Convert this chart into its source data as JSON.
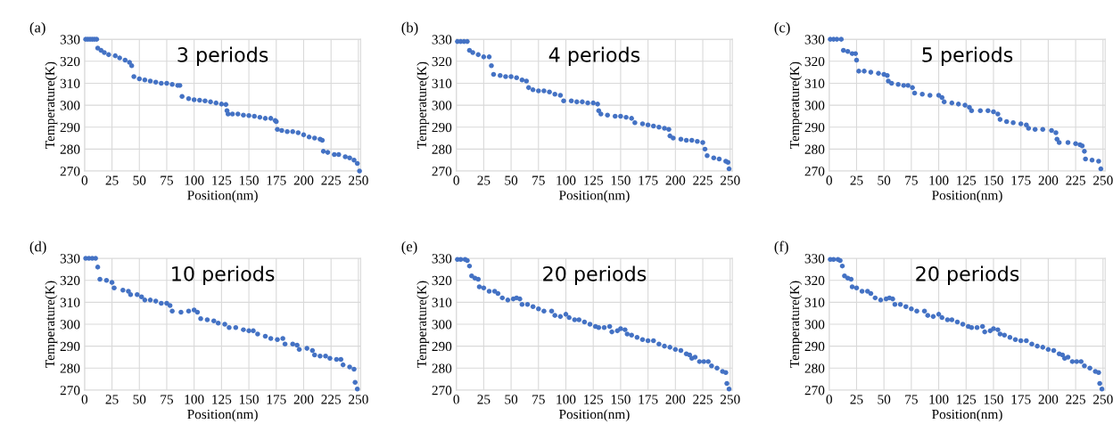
{
  "chart_data": [
    {
      "type": "scatter",
      "title": "(a)",
      "annotations": [
        "3 periods"
      ],
      "xlabel": "Position(nm)",
      "ylabel": "Temperature(K)",
      "xlim": [
        0,
        252
      ],
      "xticks": [
        0,
        25,
        50,
        75,
        100,
        125,
        150,
        175,
        200,
        225,
        250
      ],
      "ylim": [
        270,
        330
      ],
      "yticks": [
        270,
        280,
        290,
        300,
        310,
        320,
        330
      ],
      "grid": true,
      "marker": "circle",
      "series": [
        {
          "color": "#4472c4",
          "x": [
            1,
            3,
            5,
            7,
            9,
            11,
            12,
            15,
            18,
            22,
            28,
            32,
            37,
            41,
            43,
            45,
            50,
            55,
            60,
            65,
            70,
            75,
            80,
            85,
            87,
            89,
            95,
            100,
            105,
            110,
            115,
            120,
            125,
            129,
            130,
            131,
            135,
            140,
            145,
            150,
            155,
            160,
            165,
            170,
            174,
            175,
            176,
            180,
            185,
            190,
            195,
            200,
            205,
            210,
            215,
            217,
            218,
            222,
            228,
            232,
            238,
            242,
            246,
            249,
            251
          ],
          "values": [
            330,
            330,
            330,
            330,
            330,
            330,
            326,
            325,
            324,
            323,
            322.5,
            321.5,
            320.5,
            319.5,
            318,
            313,
            312,
            311.5,
            311,
            310.5,
            310,
            310,
            309.5,
            309,
            309,
            304,
            303,
            302.5,
            302.3,
            302,
            301.5,
            301,
            300.5,
            300.3,
            297.5,
            296,
            296,
            296,
            295.5,
            295.3,
            295,
            294.5,
            294,
            294,
            293,
            292.5,
            289,
            288.5,
            288,
            288,
            287.5,
            286.5,
            285.5,
            285,
            284.5,
            284,
            279,
            278.5,
            277.5,
            277.5,
            276.5,
            276,
            275,
            273.5,
            270
          ]
        }
      ]
    },
    {
      "type": "scatter",
      "title": "(b)",
      "annotations": [
        "4 periods"
      ],
      "xlabel": "Position(nm)",
      "ylabel": "Temperature(K)",
      "xlim": [
        0,
        252
      ],
      "xticks": [
        0,
        25,
        50,
        75,
        100,
        125,
        150,
        175,
        200,
        225,
        250
      ],
      "ylim": [
        270,
        330
      ],
      "yticks": [
        270,
        280,
        290,
        300,
        310,
        320,
        330
      ],
      "grid": true,
      "marker": "circle",
      "series": [
        {
          "color": "#4472c4",
          "x": [
            1,
            4,
            7,
            10,
            12,
            15,
            20,
            25,
            30,
            32,
            34,
            40,
            45,
            50,
            55,
            60,
            64,
            66,
            70,
            75,
            80,
            85,
            90,
            95,
            98,
            105,
            110,
            115,
            120,
            125,
            129,
            130,
            132,
            138,
            145,
            150,
            155,
            160,
            163,
            170,
            175,
            180,
            185,
            190,
            194,
            195,
            198,
            205,
            210,
            215,
            220,
            225,
            227,
            229,
            235,
            240,
            246,
            248,
            249
          ],
          "values": [
            329,
            329,
            329,
            329,
            325,
            324,
            323,
            322,
            322,
            318,
            314,
            313.5,
            313,
            313,
            312.5,
            311.5,
            311,
            308,
            307,
            306.5,
            306.5,
            306,
            305,
            304.5,
            302,
            302,
            301.5,
            301.5,
            301,
            301,
            300.5,
            297.5,
            296,
            295.5,
            295,
            295,
            294.5,
            294,
            292,
            291.5,
            291,
            290.5,
            290,
            289.5,
            289,
            286,
            285,
            284.5,
            284,
            284,
            283.5,
            283,
            280,
            277,
            276,
            275.5,
            274.5,
            274,
            271
          ]
        }
      ]
    },
    {
      "type": "scatter",
      "title": "(c)",
      "annotations": [
        "5 periods"
      ],
      "xlabel": "Position(nm)",
      "ylabel": "Temperature(K)",
      "xlim": [
        0,
        252
      ],
      "xticks": [
        0,
        25,
        50,
        75,
        100,
        125,
        150,
        175,
        200,
        225,
        250
      ],
      "ylim": [
        270,
        330
      ],
      "yticks": [
        270,
        280,
        290,
        300,
        310,
        320,
        330
      ],
      "grid": true,
      "marker": "circle",
      "series": [
        {
          "color": "#4472c4",
          "x": [
            1,
            4,
            7,
            11,
            13,
            17,
            21,
            24,
            25,
            27,
            32,
            38,
            45,
            50,
            53,
            54,
            57,
            63,
            68,
            72,
            76,
            78,
            85,
            92,
            100,
            103,
            105,
            112,
            118,
            124,
            128,
            130,
            138,
            145,
            150,
            154,
            156,
            162,
            168,
            175,
            180,
            182,
            188,
            195,
            203,
            207,
            208,
            210,
            218,
            225,
            229,
            231,
            233,
            234,
            240,
            246,
            248
          ],
          "values": [
            330,
            330,
            330,
            330,
            325,
            324.5,
            323.5,
            323.5,
            320.5,
            315.5,
            315.5,
            315,
            314.5,
            314,
            313.5,
            311,
            310,
            309.5,
            309,
            309,
            308,
            305.5,
            305,
            304.5,
            304.5,
            303.5,
            301.5,
            301,
            300.5,
            300,
            299,
            297.5,
            297.5,
            297.5,
            297,
            296,
            293.5,
            292.5,
            292,
            291.5,
            291,
            289.5,
            289,
            289,
            288.5,
            287.5,
            284.5,
            283,
            283,
            282.5,
            282,
            281.5,
            279,
            275.5,
            275,
            274.5,
            271
          ]
        }
      ]
    },
    {
      "type": "scatter",
      "title": "(d)",
      "annotations": [
        "10 periods"
      ],
      "xlabel": "Position(nm)",
      "ylabel": "Temperature(K)",
      "xlim": [
        0,
        252
      ],
      "xticks": [
        0,
        25,
        50,
        75,
        100,
        125,
        150,
        175,
        200,
        225,
        250
      ],
      "ylim": [
        270,
        330
      ],
      "yticks": [
        270,
        280,
        290,
        300,
        310,
        320,
        330
      ],
      "grid": true,
      "marker": "circle",
      "series": [
        {
          "color": "#4472c4",
          "x": [
            1,
            4,
            7,
            10,
            12,
            14,
            20,
            25,
            27,
            35,
            40,
            42,
            48,
            52,
            55,
            60,
            65,
            70,
            75,
            78,
            80,
            88,
            95,
            100,
            103,
            106,
            112,
            118,
            122,
            128,
            132,
            138,
            145,
            150,
            154,
            158,
            165,
            170,
            176,
            181,
            183,
            190,
            194,
            196,
            203,
            208,
            210,
            215,
            220,
            224,
            230,
            234,
            236,
            242,
            246,
            247,
            249
          ],
          "values": [
            330,
            330,
            330,
            330,
            326,
            320.5,
            320,
            319,
            316.5,
            315.5,
            315,
            313.5,
            313.5,
            312.5,
            311,
            311,
            310.5,
            309.5,
            309.5,
            308.5,
            306,
            305.5,
            306,
            306.5,
            305.5,
            302.5,
            302,
            301.5,
            300.5,
            300,
            298.5,
            298.5,
            297.5,
            297,
            297,
            295.5,
            294.5,
            293.5,
            293,
            293.5,
            291,
            291,
            290.5,
            288.5,
            289,
            288,
            286,
            285.5,
            285.5,
            284.5,
            284,
            284,
            281.5,
            280.5,
            279.5,
            273.5,
            270.5
          ]
        }
      ]
    },
    {
      "type": "scatter",
      "title": "(e)",
      "annotations": [
        "20 periods"
      ],
      "xlabel": "Position(nm)",
      "ylabel": "Temperature(K)",
      "xlim": [
        0,
        252
      ],
      "xticks": [
        0,
        25,
        50,
        75,
        100,
        125,
        150,
        175,
        200,
        225,
        250
      ],
      "ylim": [
        270,
        330
      ],
      "yticks": [
        270,
        280,
        290,
        300,
        310,
        320,
        330
      ],
      "grid": true,
      "marker": "circle",
      "series": [
        {
          "color": "#4472c4",
          "x": [
            1,
            4,
            8,
            10,
            12,
            14,
            17,
            20,
            21,
            25,
            30,
            35,
            38,
            42,
            47,
            52,
            55,
            58,
            60,
            65,
            70,
            75,
            80,
            87,
            90,
            95,
            100,
            103,
            108,
            112,
            117,
            122,
            127,
            130,
            135,
            140,
            142,
            147,
            150,
            154,
            156,
            160,
            165,
            170,
            175,
            180,
            185,
            190,
            195,
            200,
            205,
            210,
            213,
            215,
            218,
            222,
            226,
            230,
            233,
            238,
            243,
            246,
            247,
            249
          ],
          "values": [
            329.5,
            329.5,
            329.5,
            329,
            326.5,
            322,
            321,
            320.5,
            317,
            316.5,
            315,
            315,
            314,
            312,
            311,
            311.5,
            312,
            311.5,
            309,
            309,
            308,
            307,
            306,
            306,
            304,
            303.5,
            304.5,
            303,
            302,
            302,
            301,
            300,
            299,
            298.5,
            298.5,
            299,
            296.5,
            297,
            298,
            297.5,
            295.5,
            295,
            294,
            293,
            292.5,
            292.5,
            291,
            290,
            289.5,
            288.5,
            288,
            286.5,
            286,
            284.5,
            285,
            283,
            283,
            283,
            281,
            280,
            278.5,
            278,
            273,
            270.5
          ]
        }
      ]
    },
    {
      "type": "scatter",
      "title": "(f)",
      "annotations": [
        "20 periods"
      ],
      "xlabel": "Position(nm)",
      "ylabel": "Temperature(K)",
      "xlim": [
        0,
        252
      ],
      "xticks": [
        0,
        25,
        50,
        75,
        100,
        125,
        150,
        175,
        200,
        225,
        250
      ],
      "ylim": [
        270,
        330
      ],
      "yticks": [
        270,
        280,
        290,
        300,
        310,
        320,
        330
      ],
      "grid": true,
      "marker": "circle",
      "series": [
        {
          "color": "#4472c4",
          "x": [
            1,
            4,
            8,
            10,
            12,
            14,
            17,
            20,
            21,
            25,
            30,
            35,
            38,
            42,
            47,
            52,
            55,
            58,
            60,
            65,
            70,
            75,
            80,
            87,
            90,
            95,
            100,
            103,
            108,
            112,
            117,
            122,
            127,
            130,
            135,
            140,
            142,
            147,
            150,
            154,
            156,
            160,
            165,
            170,
            175,
            180,
            185,
            190,
            195,
            200,
            205,
            210,
            213,
            215,
            218,
            222,
            226,
            230,
            233,
            238,
            243,
            246,
            247,
            249
          ],
          "values": [
            329.5,
            329.5,
            329.5,
            329,
            326.5,
            322,
            321,
            320.5,
            317,
            316.5,
            315,
            315,
            314,
            312,
            311,
            311.5,
            312,
            311.5,
            309,
            309,
            308,
            307,
            306,
            306,
            304,
            303.5,
            304.5,
            303,
            302,
            302,
            301,
            300,
            299,
            298.5,
            298.5,
            299,
            296.5,
            297,
            298,
            297.5,
            295.5,
            295,
            294,
            293,
            292.5,
            292.5,
            291,
            290,
            289.5,
            288.5,
            288,
            286.5,
            286,
            284.5,
            285,
            283,
            283,
            283,
            281,
            280,
            278.5,
            278,
            273,
            270.5
          ]
        }
      ]
    }
  ]
}
